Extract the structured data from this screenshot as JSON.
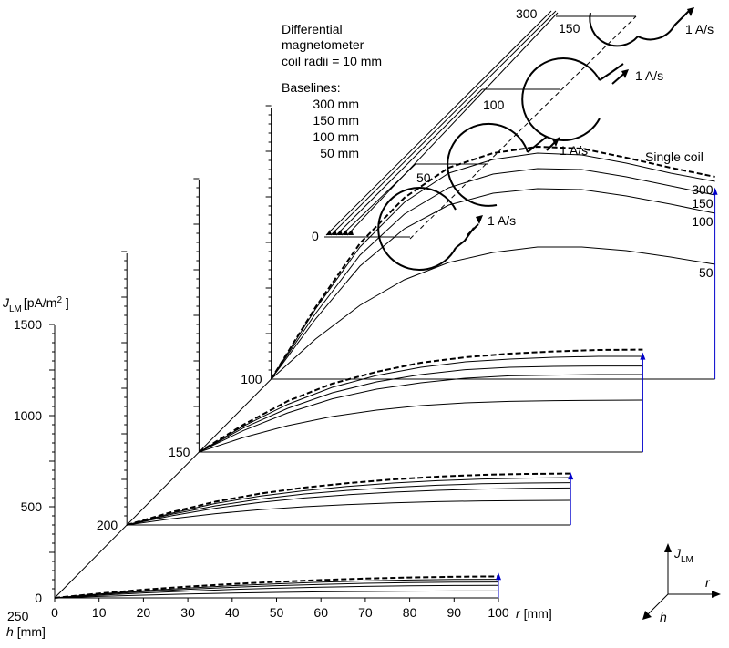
{
  "figure": {
    "annotation_lines": [
      "Differential",
      "magnetometer",
      "coil radii = 10 mm"
    ],
    "baselines_title": "Baselines:",
    "baselines": [
      "300 mm",
      "150 mm",
      "100 mm",
      "50 mm"
    ],
    "current_label": "1 A/s",
    "single_coil_label": "Single coil",
    "coil_labels": [
      "300",
      "150",
      "100",
      "50",
      "0"
    ]
  },
  "chart_data": {
    "type": "line",
    "subtype": "3d-waterfall",
    "ylabel_main": "J",
    "ylabel_sub": "LM",
    "ylabel_unit_pre": "[pA/m",
    "ylabel_unit_sup": "2",
    "ylabel_unit_post": " ]",
    "xlabel_main": "r",
    "xlabel_unit": "[mm]",
    "depth_label_main": "h",
    "depth_label_unit": "[mm]",
    "xlim": [
      0,
      100
    ],
    "ylim": [
      0,
      1500
    ],
    "x_ticks": [
      "0",
      "10",
      "20",
      "30",
      "40",
      "50",
      "60",
      "70",
      "80",
      "90",
      "100"
    ],
    "y_ticks": [
      "0",
      "500",
      "1000",
      "1500"
    ],
    "depth_ticks": [
      "100",
      "150",
      "200",
      "250"
    ],
    "orientation_labels": {
      "j_main": "J",
      "j_sub": "LM",
      "r": "r",
      "h": "h"
    },
    "x": [
      0,
      10,
      20,
      30,
      40,
      50,
      60,
      70,
      80,
      90,
      100
    ],
    "panels": [
      {
        "h": 100,
        "series": [
          {
            "name": "Single coil",
            "style": "dashed",
            "label": "",
            "values": [
              0,
              395,
              745,
              995,
              1160,
              1240,
              1275,
              1265,
              1215,
              1160,
              1110
            ]
          },
          {
            "name": "300",
            "style": "solid",
            "label": "300",
            "values": [
              0,
              385,
              725,
              970,
              1130,
              1205,
              1240,
              1230,
              1185,
              1130,
              1085
            ]
          },
          {
            "name": "150",
            "style": "solid",
            "label": "150",
            "values": [
              0,
              360,
              680,
              905,
              1050,
              1125,
              1155,
              1150,
              1110,
              1060,
              1010
            ]
          },
          {
            "name": "100",
            "style": "solid",
            "label": "100",
            "values": [
              0,
              330,
              620,
              825,
              955,
              1020,
              1045,
              1040,
              1005,
              960,
              910
            ]
          },
          {
            "name": "50",
            "style": "solid",
            "label": "50",
            "values": [
              0,
              220,
              405,
              545,
              640,
              695,
              725,
              725,
              705,
              670,
              630
            ]
          }
        ]
      },
      {
        "h": 150,
        "series": [
          {
            "name": "Single coil",
            "style": "dashed",
            "label": "",
            "values": [
              0,
              150,
              280,
              375,
              440,
              490,
              520,
              540,
              552,
              560,
              562
            ]
          },
          {
            "name": "300",
            "style": "solid",
            "label": "",
            "values": [
              0,
              142,
              262,
              355,
              420,
              465,
              495,
              510,
              520,
              525,
              525
            ]
          },
          {
            "name": "150",
            "style": "solid",
            "label": "",
            "values": [
              0,
              132,
              240,
              325,
              385,
              425,
              452,
              465,
              470,
              472,
              472
            ]
          },
          {
            "name": "100",
            "style": "solid",
            "label": "",
            "values": [
              0,
              118,
              215,
              292,
              345,
              380,
              405,
              418,
              422,
              425,
              425
            ]
          },
          {
            "name": "50",
            "style": "solid",
            "label": "",
            "values": [
              0,
              80,
              145,
              195,
              230,
              255,
              270,
              278,
              282,
              284,
              285
            ]
          }
        ]
      },
      {
        "h": 200,
        "series": [
          {
            "name": "Single coil",
            "style": "dashed",
            "label": "",
            "values": [
              0,
              70,
              128,
              172,
              205,
              230,
              250,
              265,
              275,
              280,
              282
            ]
          },
          {
            "name": "300",
            "style": "solid",
            "label": "",
            "values": [
              0,
              64,
              118,
              158,
              188,
              212,
              230,
              243,
              252,
              257,
              260
            ]
          },
          {
            "name": "150",
            "style": "solid",
            "label": "",
            "values": [
              0,
              58,
              105,
              142,
              170,
              190,
              206,
              218,
              226,
              230,
              232
            ]
          },
          {
            "name": "100",
            "style": "solid",
            "label": "",
            "values": [
              0,
              50,
              92,
              124,
              148,
              166,
              180,
              190,
              197,
              201,
              203
            ]
          },
          {
            "name": "50",
            "style": "solid",
            "label": "",
            "values": [
              0,
              34,
              62,
              84,
              100,
              112,
              121,
              128,
              132,
              134,
              135
            ]
          }
        ]
      },
      {
        "h": 250,
        "series": [
          {
            "name": "Single coil",
            "style": "dashed",
            "label": "",
            "values": [
              0,
              24,
              45,
              62,
              76,
              88,
              98,
              106,
              112,
              116,
              118
            ]
          },
          {
            "name": "300",
            "style": "solid",
            "label": "",
            "values": [
              0,
              21,
              39,
              54,
              67,
              77,
              86,
              93,
              98,
              101,
              102
            ]
          },
          {
            "name": "150",
            "style": "solid",
            "label": "",
            "values": [
              0,
              18,
              34,
              47,
              58,
              67,
              74,
              80,
              84,
              86,
              87
            ]
          },
          {
            "name": "100",
            "style": "solid",
            "label": "",
            "values": [
              0,
              14,
              27,
              37,
              46,
              53,
              59,
              63,
              66,
              68,
              69
            ]
          },
          {
            "name": "50",
            "style": "solid",
            "label": "",
            "values": [
              0,
              8,
              15,
              21,
              26,
              30,
              33,
              35,
              37,
              38,
              38
            ]
          }
        ]
      }
    ]
  }
}
